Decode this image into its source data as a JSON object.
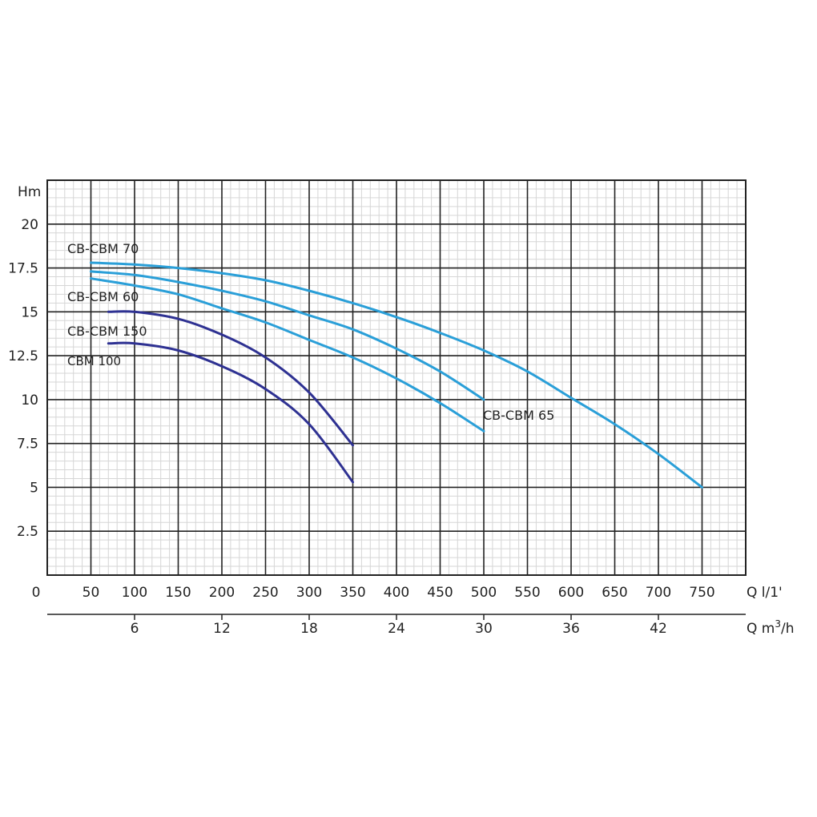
{
  "chart_data": {
    "type": "line",
    "ylabel": "Hm",
    "xlabel_primary": "Q l/1'",
    "xlabel_secondary_prefix": "Q m",
    "xlabel_secondary_sup": "3",
    "xlabel_secondary_suffix": "/h",
    "xlim": [
      0,
      800
    ],
    "ylim": [
      0,
      22.5
    ],
    "x_ticks": [
      "0",
      "50",
      "100",
      "150",
      "200",
      "250",
      "300",
      "350",
      "400",
      "450",
      "500",
      "550",
      "600",
      "650",
      "700",
      "750"
    ],
    "x_tick_values": [
      0,
      50,
      100,
      150,
      200,
      250,
      300,
      350,
      400,
      450,
      500,
      550,
      600,
      650,
      700,
      750
    ],
    "y_ticks": [
      "2.5",
      "5",
      "7.5",
      "10",
      "12.5",
      "15",
      "17.5",
      "20"
    ],
    "y_tick_values": [
      2.5,
      5,
      7.5,
      10,
      12.5,
      15,
      17.5,
      20
    ],
    "x2_ticks": [
      "6",
      "12",
      "18",
      "24",
      "30",
      "36",
      "42"
    ],
    "x2_tick_values": [
      6,
      12,
      18,
      24,
      30,
      36,
      42
    ],
    "grid": true,
    "series": [
      {
        "name": "CB-CBM 70",
        "color": "#2a9fd8",
        "x": [
          50,
          100,
          150,
          200,
          250,
          300,
          350,
          400,
          450,
          500,
          550,
          600,
          650,
          700,
          750
        ],
        "y": [
          17.8,
          17.7,
          17.5,
          17.2,
          16.8,
          16.2,
          15.5,
          14.7,
          13.8,
          12.8,
          11.6,
          10.1,
          8.6,
          6.9,
          5.0
        ]
      },
      {
        "name": "CB-CBM 60",
        "color": "#2a9fd8",
        "x": [
          50,
          100,
          150,
          200,
          250,
          300,
          350,
          400,
          450,
          500
        ],
        "y": [
          17.3,
          17.1,
          16.7,
          16.2,
          15.6,
          14.8,
          14.0,
          12.9,
          11.6,
          10.0
        ]
      },
      {
        "name": "CB-CBM 65",
        "color": "#2a9fd8",
        "x": [
          50,
          100,
          150,
          200,
          250,
          300,
          350,
          400,
          450,
          500
        ],
        "y": [
          16.9,
          16.5,
          16.0,
          15.2,
          14.4,
          13.4,
          12.4,
          11.2,
          9.8,
          8.2
        ]
      },
      {
        "name": "CB-CBM 150",
        "color": "#2e3192",
        "x": [
          70,
          100,
          150,
          200,
          250,
          300,
          350
        ],
        "y": [
          15.0,
          15.0,
          14.6,
          13.7,
          12.4,
          10.4,
          7.4
        ]
      },
      {
        "name": "CBM 100",
        "color": "#2e3192",
        "x": [
          70,
          100,
          150,
          200,
          250,
          300,
          350
        ],
        "y": [
          13.2,
          13.2,
          12.8,
          11.9,
          10.6,
          8.6,
          5.3
        ]
      }
    ]
  }
}
